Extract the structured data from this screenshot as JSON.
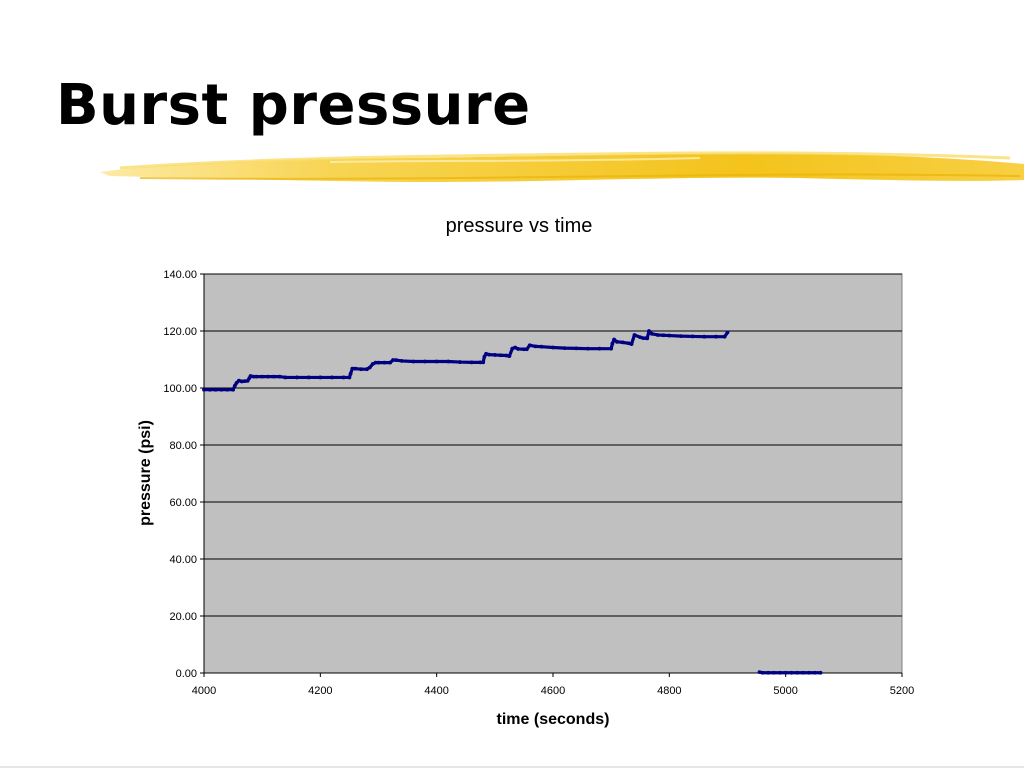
{
  "slide": {
    "title": "Burst pressure"
  },
  "colors": {
    "plot_bg": "#c0c0c0",
    "series": "#000080",
    "accent": "#f5c518",
    "grid": "#000000"
  },
  "chart_data": {
    "type": "scatter",
    "title": "pressure vs time",
    "xlabel": "time (seconds)",
    "ylabel": "pressure (psi)",
    "xlim": [
      4000,
      5200
    ],
    "ylim": [
      0,
      140
    ],
    "x_ticks": [
      "4000",
      "4200",
      "4400",
      "4600",
      "4800",
      "5000",
      "5200"
    ],
    "y_ticks": [
      "0.00",
      "20.00",
      "40.00",
      "60.00",
      "80.00",
      "100.00",
      "120.00",
      "140.00"
    ],
    "grid": "horizontal",
    "legend": "none",
    "series": [
      {
        "x": [
          4000,
          4010,
          4020,
          4030,
          4040,
          4050,
          4053,
          4056,
          4060,
          4065,
          4070,
          4075,
          4078,
          4080,
          4085,
          4090,
          4100,
          4110,
          4120,
          4130,
          4140,
          4160,
          4180,
          4200,
          4220,
          4240,
          4250,
          4252,
          4255,
          4260,
          4270,
          4280,
          4285,
          4290,
          4295,
          4300,
          4310,
          4320,
          4325,
          4330,
          4340,
          4360,
          4380,
          4400,
          4420,
          4440,
          4460,
          4475,
          4480,
          4482,
          4485,
          4490,
          4500,
          4510,
          4520,
          4525,
          4530,
          4535,
          4540,
          4550,
          4555,
          4560,
          4570,
          4580,
          4600,
          4620,
          4640,
          4660,
          4680,
          4700,
          4702,
          4705,
          4710,
          4720,
          4730,
          4735,
          4740,
          4750,
          4755,
          4760,
          4762,
          4765,
          4770,
          4780,
          4790,
          4800,
          4820,
          4840,
          4860,
          4880,
          4895,
          4900,
          4955,
          4960,
          4970,
          4980,
          4990,
          5000,
          5010,
          5020,
          5030,
          5040,
          5050,
          5060
        ],
        "y": [
          99.4,
          99.4,
          99.4,
          99.4,
          99.4,
          99.4,
          100.8,
          101.8,
          102.6,
          102.3,
          102.4,
          102.5,
          103.5,
          104.2,
          104.0,
          104.0,
          104.0,
          104.0,
          104.0,
          104.0,
          103.7,
          103.7,
          103.7,
          103.7,
          103.7,
          103.7,
          103.7,
          105.0,
          106.8,
          106.8,
          106.6,
          106.6,
          107.2,
          108.4,
          108.9,
          108.9,
          108.9,
          108.9,
          109.8,
          109.8,
          109.5,
          109.3,
          109.3,
          109.3,
          109.3,
          109.1,
          109.0,
          109.0,
          109.0,
          111.0,
          112.0,
          111.7,
          111.6,
          111.5,
          111.4,
          111.2,
          113.8,
          114.2,
          113.7,
          113.6,
          113.6,
          115.0,
          114.6,
          114.5,
          114.2,
          114.0,
          113.9,
          113.8,
          113.8,
          113.8,
          115.5,
          117.0,
          116.2,
          116.0,
          115.7,
          115.4,
          118.6,
          117.8,
          117.5,
          117.5,
          117.4,
          120.0,
          119.0,
          118.6,
          118.5,
          118.4,
          118.2,
          118.1,
          118.0,
          118.0,
          118.0,
          119.5,
          0.3,
          0.1,
          0.1,
          0.1,
          0.1,
          0.1,
          0.1,
          0.1,
          0.1,
          0.1,
          0.1,
          0.1
        ]
      }
    ]
  }
}
